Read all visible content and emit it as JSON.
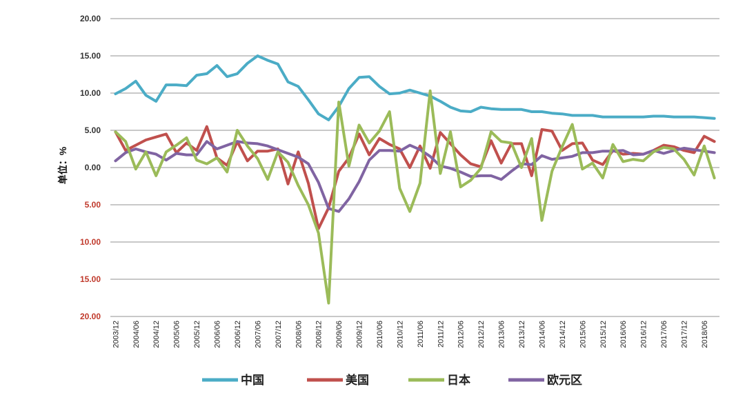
{
  "chart_data": {
    "type": "line",
    "title": "",
    "xlabel": "",
    "ylabel": "单位：%",
    "ylim": [
      -20,
      20
    ],
    "y_ticks": [
      {
        "value": 20,
        "label": "20.00",
        "color": "#333333"
      },
      {
        "value": 15,
        "label": "15.00",
        "color": "#333333"
      },
      {
        "value": 10,
        "label": "10.00",
        "color": "#333333"
      },
      {
        "value": 5,
        "label": "5.00",
        "color": "#333333"
      },
      {
        "value": 0,
        "label": "0.00",
        "color": "#333333"
      },
      {
        "value": -5,
        "label": "5.00",
        "color": "#c0392b"
      },
      {
        "value": -10,
        "label": "10.00",
        "color": "#c0392b"
      },
      {
        "value": -15,
        "label": "15.00",
        "color": "#c0392b"
      },
      {
        "value": -20,
        "label": "20.00",
        "color": "#c0392b"
      }
    ],
    "grid": true,
    "legend_position": "bottom",
    "x": [
      "2003/12",
      "2004/03",
      "2004/06",
      "2004/09",
      "2004/12",
      "2005/03",
      "2005/06",
      "2005/09",
      "2005/12",
      "2006/03",
      "2006/06",
      "2006/09",
      "2006/12",
      "2007/03",
      "2007/06",
      "2007/09",
      "2007/12",
      "2008/03",
      "2008/06",
      "2008/09",
      "2008/12",
      "2009/03",
      "2009/06",
      "2009/09",
      "2009/12",
      "2010/03",
      "2010/06",
      "2010/09",
      "2010/12",
      "2011/03",
      "2011/06",
      "2011/09",
      "2011/12",
      "2012/03",
      "2012/06",
      "2012/09",
      "2012/12",
      "2013/03",
      "2013/06",
      "2013/09",
      "2013/12",
      "2014/03",
      "2014/06",
      "2014/09",
      "2014/12",
      "2015/03",
      "2015/06",
      "2015/09",
      "2015/12",
      "2016/03",
      "2016/06",
      "2016/09",
      "2016/12",
      "2017/03",
      "2017/06",
      "2017/09",
      "2017/12",
      "2018/03",
      "2018/06",
      "2018/09"
    ],
    "x_tick_labels": [
      "2003/12",
      "2004/06",
      "2004/12",
      "2005/06",
      "2005/12",
      "2006/06",
      "2006/12",
      "2007/06",
      "2007/12",
      "2008/06",
      "2008/12",
      "2009/06",
      "2009/12",
      "2010/06",
      "2010/12",
      "2011/06",
      "2011/12",
      "2012/06",
      "2012/12",
      "2013/06",
      "2013/12",
      "2014/06",
      "2014/12",
      "2015/06",
      "2015/12",
      "2016/06",
      "2016/12",
      "2017/06",
      "2017/12",
      "2018/06"
    ],
    "series": [
      {
        "name": "中国",
        "color": "#4bacc6",
        "values": [
          9.9,
          10.6,
          11.6,
          9.7,
          8.9,
          11.1,
          11.1,
          11.0,
          12.4,
          12.6,
          13.7,
          12.2,
          12.6,
          14.0,
          15.0,
          14.4,
          13.9,
          11.5,
          10.9,
          9.1,
          7.2,
          6.4,
          8.2,
          10.6,
          12.1,
          12.2,
          10.9,
          9.9,
          10.0,
          10.4,
          10.0,
          9.6,
          8.9,
          8.1,
          7.6,
          7.5,
          8.1,
          7.9,
          7.8,
          7.8,
          7.8,
          7.5,
          7.5,
          7.3,
          7.2,
          7.0,
          7.0,
          7.0,
          6.8,
          6.8,
          6.8,
          6.8,
          6.8,
          6.9,
          6.9,
          6.8,
          6.8,
          6.8,
          6.7,
          6.6
        ]
      },
      {
        "name": "美国",
        "color": "#c0504d",
        "values": [
          4.8,
          2.3,
          3.0,
          3.7,
          4.1,
          4.5,
          2.0,
          3.3,
          2.3,
          5.5,
          1.3,
          0.3,
          3.5,
          0.9,
          2.2,
          2.2,
          2.5,
          -2.2,
          2.1,
          -2.1,
          -8.2,
          -5.4,
          -0.5,
          1.3,
          4.5,
          1.7,
          3.9,
          3.1,
          2.5,
          0.0,
          2.9,
          -0.1,
          4.7,
          3.2,
          1.7,
          0.5,
          0.1,
          3.6,
          0.6,
          3.2,
          3.2,
          -1.1,
          5.1,
          4.9,
          2.3,
          3.2,
          3.3,
          1.0,
          0.4,
          2.3,
          1.8,
          1.9,
          1.8,
          2.3,
          3.0,
          2.8,
          2.3,
          2.0,
          4.2,
          3.5
        ]
      },
      {
        "name": "日本",
        "color": "#9bbb59",
        "values": [
          4.8,
          3.5,
          -0.2,
          2.1,
          -1.1,
          2.1,
          3.0,
          4.0,
          1.0,
          0.5,
          1.3,
          -0.6,
          5.0,
          2.9,
          1.2,
          -1.6,
          2.1,
          0.7,
          -2.4,
          -5.0,
          -8.8,
          -18.2,
          8.8,
          0.2,
          5.7,
          3.3,
          4.9,
          7.5,
          -2.8,
          -5.9,
          -2.1,
          10.3,
          -0.8,
          4.8,
          -2.6,
          -1.7,
          -0.1,
          4.8,
          3.5,
          3.3,
          0.0,
          3.9,
          -7.1,
          -0.5,
          2.8,
          5.8,
          -0.2,
          0.6,
          -1.4,
          3.1,
          0.8,
          1.1,
          0.9,
          2.1,
          2.7,
          2.5,
          1.1,
          -1.0,
          2.9,
          -1.4
        ]
      },
      {
        "name": "欧元区",
        "color": "#8064a2",
        "values": [
          0.9,
          2.0,
          2.5,
          2.1,
          1.8,
          1.0,
          1.9,
          1.7,
          1.7,
          3.5,
          2.5,
          3.0,
          3.5,
          3.3,
          3.2,
          2.9,
          2.4,
          1.9,
          1.4,
          0.5,
          -2.0,
          -5.5,
          -5.9,
          -4.2,
          -1.9,
          1.0,
          2.3,
          2.3,
          2.2,
          3.0,
          2.4,
          1.5,
          0.2,
          -0.1,
          -0.6,
          -1.2,
          -1.1,
          -1.1,
          -1.6,
          -0.5,
          0.5,
          0.4,
          1.6,
          1.1,
          1.3,
          1.5,
          2.0,
          2.0,
          2.2,
          2.2,
          2.3,
          1.7,
          1.8,
          2.3,
          1.9,
          2.3,
          2.6,
          2.4,
          2.2,
          2.0
        ]
      }
    ]
  }
}
